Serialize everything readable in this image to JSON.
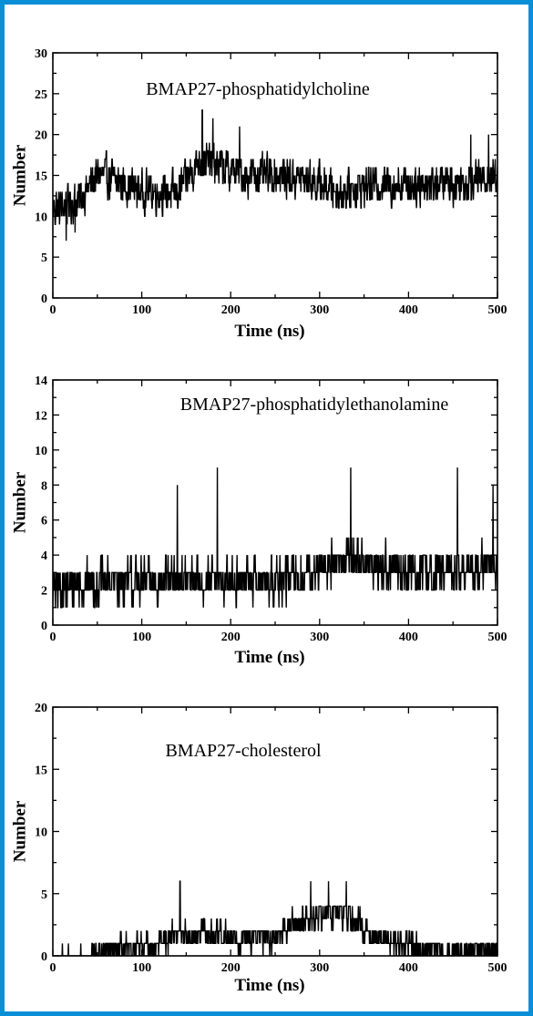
{
  "colors": {
    "frame": "#0a8fd6",
    "series": "#000000",
    "background": "#ffffff"
  },
  "chart_data": [
    {
      "type": "line",
      "title": "BMAP27-phosphatidylcholine",
      "xlabel": "Time (ns)",
      "ylabel": "Number",
      "xlim": [
        0,
        500
      ],
      "ylim": [
        0,
        30
      ],
      "xticks": [
        0,
        100,
        200,
        300,
        400,
        500
      ],
      "yticks": [
        0,
        5,
        10,
        15,
        20,
        25,
        30
      ],
      "trend": [
        [
          0,
          11
        ],
        [
          30,
          12
        ],
        [
          50,
          15
        ],
        [
          80,
          14
        ],
        [
          100,
          13
        ],
        [
          140,
          13
        ],
        [
          165,
          17
        ],
        [
          190,
          16
        ],
        [
          220,
          15
        ],
        [
          260,
          15
        ],
        [
          300,
          14
        ],
        [
          320,
          13
        ],
        [
          360,
          14
        ],
        [
          400,
          14
        ],
        [
          450,
          14
        ],
        [
          500,
          15
        ]
      ],
      "spread": 3.2,
      "range": [
        6,
        23
      ],
      "spikes": [
        [
          15,
          7
        ],
        [
          25,
          8
        ],
        [
          168,
          23
        ],
        [
          180,
          22
        ],
        [
          210,
          21
        ],
        [
          470,
          20
        ],
        [
          490,
          20
        ]
      ]
    },
    {
      "type": "line",
      "title": "BMAP27-phosphatidylethanolamine",
      "xlabel": "Time (ns)",
      "ylabel": "Number",
      "xlim": [
        0,
        500
      ],
      "ylim": [
        0,
        14
      ],
      "xticks": [
        0,
        100,
        200,
        300,
        400,
        500
      ],
      "yticks": [
        0,
        2,
        4,
        6,
        8,
        10,
        12,
        14
      ],
      "trend": [
        [
          0,
          2
        ],
        [
          50,
          2.5
        ],
        [
          100,
          2.5
        ],
        [
          150,
          2.5
        ],
        [
          200,
          2.5
        ],
        [
          250,
          2.5
        ],
        [
          300,
          3
        ],
        [
          330,
          4
        ],
        [
          350,
          3.5
        ],
        [
          400,
          3
        ],
        [
          450,
          3
        ],
        [
          500,
          3.5
        ]
      ],
      "spread": 1.6,
      "range": [
        0,
        9
      ],
      "spikes": [
        [
          185,
          9
        ],
        [
          335,
          9
        ],
        [
          455,
          9
        ],
        [
          495,
          8
        ],
        [
          140,
          8
        ]
      ]
    },
    {
      "type": "line",
      "title": "BMAP27-cholesterol",
      "xlabel": "Time (ns)",
      "ylabel": "Number",
      "xlim": [
        0,
        500
      ],
      "ylim": [
        0,
        20
      ],
      "xticks": [
        0,
        100,
        200,
        300,
        400,
        500
      ],
      "yticks": [
        0,
        5,
        10,
        15,
        20
      ],
      "trend": [
        [
          0,
          0
        ],
        [
          40,
          0
        ],
        [
          60,
          0.3
        ],
        [
          100,
          0.5
        ],
        [
          140,
          1.8
        ],
        [
          200,
          1.5
        ],
        [
          250,
          1.5
        ],
        [
          280,
          3
        ],
        [
          320,
          3.5
        ],
        [
          345,
          2.5
        ],
        [
          360,
          1.5
        ],
        [
          400,
          1
        ],
        [
          430,
          0.3
        ],
        [
          470,
          0.3
        ],
        [
          500,
          0.8
        ]
      ],
      "spread": 1.4,
      "range": [
        0,
        6
      ],
      "spikes": [
        [
          143,
          6
        ],
        [
          290,
          6
        ],
        [
          310,
          6
        ],
        [
          330,
          6
        ]
      ]
    }
  ]
}
